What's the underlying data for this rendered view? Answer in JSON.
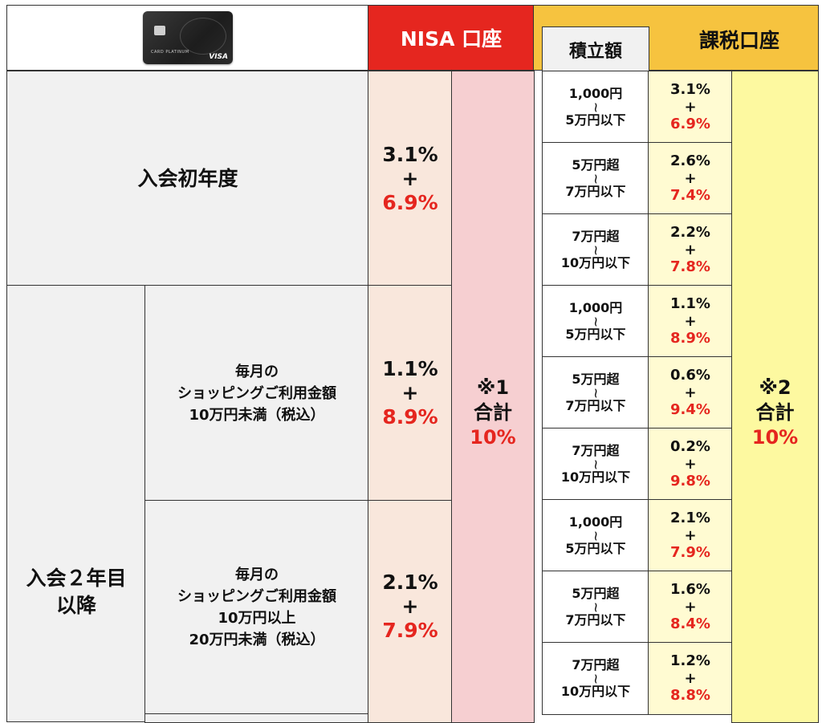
{
  "card": {
    "name_text": "CARD PLATINUM",
    "brand_text": "VISA"
  },
  "headers": {
    "nisa": "NISA 口座",
    "taxable": "課税口座",
    "amount": "積立額"
  },
  "rows": {
    "first_year": "入会初年度",
    "second_year_line1": "入会２年目",
    "second_year_line2": "以降",
    "tier1": [
      "毎月の",
      "ショッピングご利用金額",
      "10万円未満（税込）"
    ],
    "tier2": [
      "毎月の",
      "ショッピングご利用金額",
      "10万円以上",
      "20万円未満（税込）"
    ]
  },
  "nisa_rates": [
    {
      "base": "3.1%",
      "plus": "+",
      "bonus": "6.9%"
    },
    {
      "base": "1.1%",
      "plus": "+",
      "bonus": "8.9%"
    },
    {
      "base": "2.1%",
      "plus": "+",
      "bonus": "7.9%"
    }
  ],
  "nisa_total": {
    "note": "※1",
    "label": "合計",
    "value": "10%"
  },
  "taxable_total": {
    "note": "※2",
    "label": "合計",
    "value": "10%"
  },
  "amounts": [
    {
      "from": "1,000円",
      "tilde": "~",
      "to": "5万円以下"
    },
    {
      "from": "5万円超",
      "tilde": "~",
      "to": "7万円以下"
    },
    {
      "from": "7万円超",
      "tilde": "~",
      "to": "10万円以下"
    },
    {
      "from": "1,000円",
      "tilde": "~",
      "to": "5万円以下"
    },
    {
      "from": "5万円超",
      "tilde": "~",
      "to": "7万円以下"
    },
    {
      "from": "7万円超",
      "tilde": "~",
      "to": "10万円以下"
    },
    {
      "from": "1,000円",
      "tilde": "~",
      "to": "5万円以下"
    },
    {
      "from": "5万円超",
      "tilde": "~",
      "to": "7万円以下"
    },
    {
      "from": "7万円超",
      "tilde": "~",
      "to": "10万円以下"
    }
  ],
  "taxable_rates": [
    {
      "base": "3.1%",
      "plus": "+",
      "bonus": "6.9%"
    },
    {
      "base": "2.6%",
      "plus": "+",
      "bonus": "7.4%"
    },
    {
      "base": "2.2%",
      "plus": "+",
      "bonus": "7.8%"
    },
    {
      "base": "1.1%",
      "plus": "+",
      "bonus": "8.9%"
    },
    {
      "base": "0.6%",
      "plus": "+",
      "bonus": "9.4%"
    },
    {
      "base": "0.2%",
      "plus": "+",
      "bonus": "9.8%"
    },
    {
      "base": "2.1%",
      "plus": "+",
      "bonus": "7.9%"
    },
    {
      "base": "1.6%",
      "plus": "+",
      "bonus": "8.4%"
    },
    {
      "base": "1.2%",
      "plus": "+",
      "bonus": "8.8%"
    }
  ],
  "colors": {
    "nisa_header": "#e5261f",
    "taxable_header": "#f6c33f",
    "accent_red": "#e5261f",
    "nisa_rate_bg": "#f9e7dc",
    "nisa_total_bg": "#f6cfd1",
    "taxable_rate_bg": "#fffbd2",
    "taxable_total_bg": "#fdf9a0",
    "label_bg": "#f1f1f1"
  }
}
